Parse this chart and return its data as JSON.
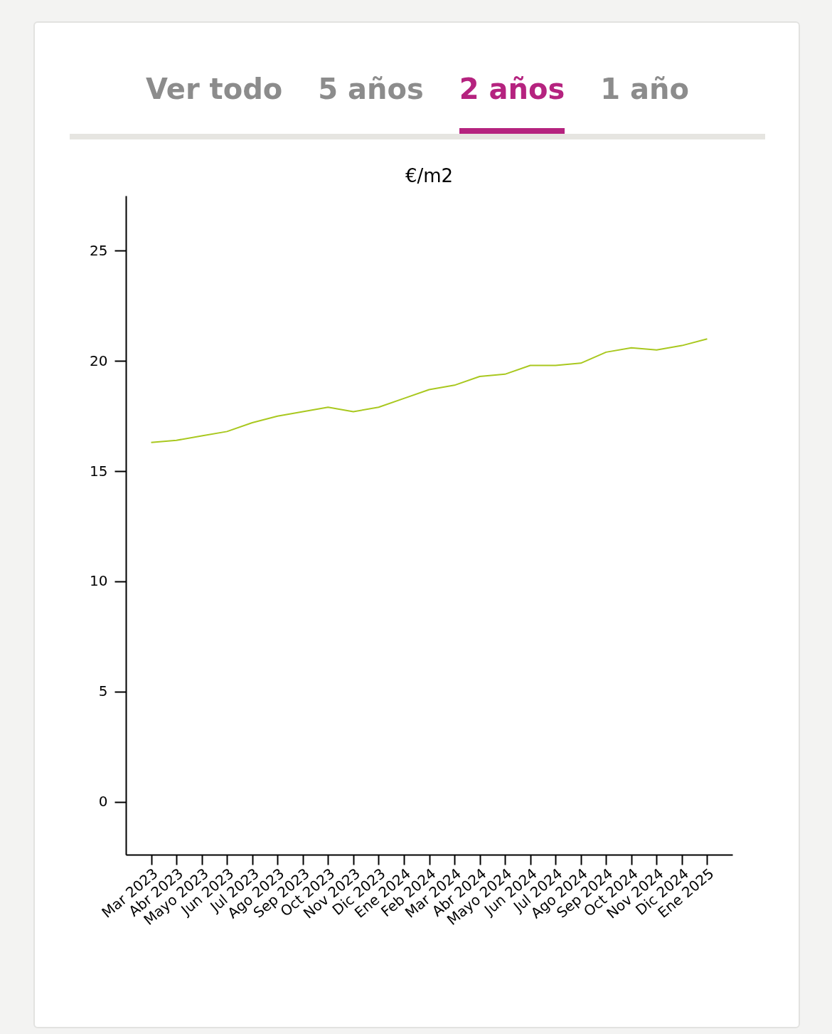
{
  "chart_data": {
    "type": "line",
    "title": "€/m2",
    "categories": [
      "Mar 2023",
      "Abr 2023",
      "Mayo 2023",
      "Jun 2023",
      "Jul 2023",
      "Ago 2023",
      "Sep 2023",
      "Oct 2023",
      "Nov 2023",
      "Dic 2023",
      "Ene 2024",
      "Feb 2024",
      "Mar 2024",
      "Abr 2024",
      "Mayo 2024",
      "Jun 2024",
      "Jul 2024",
      "Ago 2024",
      "Sep 2024",
      "Oct 2024",
      "Nov 2024",
      "Dic 2024",
      "Ene 2025"
    ],
    "series": [
      {
        "color": "#a9c81f",
        "values": [
          16.3,
          16.4,
          16.6,
          16.8,
          17.2,
          17.5,
          17.7,
          17.9,
          17.7,
          17.9,
          18.3,
          18.7,
          18.9,
          19.3,
          19.4,
          19.8,
          19.8,
          19.9,
          20.4,
          20.6,
          20.5,
          20.7,
          21.0
        ]
      }
    ],
    "ylim": [
      -2.4,
      27.5
    ],
    "yticks": [
      0,
      5,
      10,
      15,
      20,
      25
    ],
    "grid": false,
    "legend": false,
    "marker": "none",
    "line_style": "solid",
    "annotations": [
      "Ver todo",
      "5 años",
      "2 años",
      "1 año"
    ]
  }
}
